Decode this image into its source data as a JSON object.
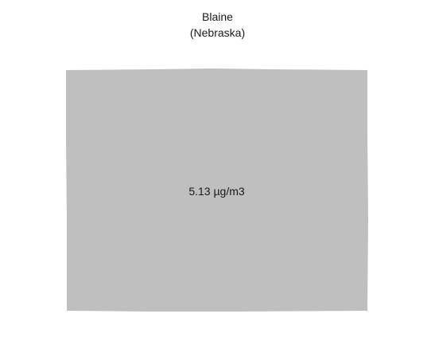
{
  "map": {
    "county": "Blaine",
    "state": "(Nebraska)",
    "value_label": "5.13 µg/m3",
    "region_fill": "#bfbfbf",
    "background": "#ffffff"
  }
}
